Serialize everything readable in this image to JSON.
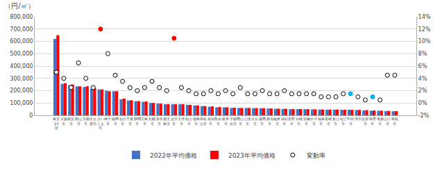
{
  "chart_data": {
    "type": "bar",
    "title": "（円/㎡）",
    "categories": [
      "東京\n23\n区",
      "大阪\n市",
      "横浜\n市",
      "郡山\n市",
      "京都\n市",
      "名古\n屋市",
      "さい\nたま\n市",
      "神戸\n市",
      "福岡\n市",
      "仙台\n市",
      "千葉\n市",
      "静岡\n市",
      "広島\n市",
      "札幌\n市",
      "奈良\n市",
      "鹿児\n島市",
      "金沢\n市",
      "大津\n市",
      "松山\n市",
      "徳島\n市",
      "和歌\n山市",
      "高知\n市",
      "熊本\n市",
      "岐阜\n市",
      "宇都\n宮市",
      "岡山\n市",
      "山形\n市",
      "大分\n市",
      "盛岡\n市",
      "新潟\n市",
      "福井\n市",
      "高松\n市",
      "長野\n市",
      "宮崎\n市",
      "前橋\n市",
      "水戸\n市",
      "福島\n市",
      "長崎\n市",
      "富山\n市",
      "松江\n市",
      "甲府\n市",
      "津市",
      "佐賀\n市",
      "秋田\n市",
      "青森\n市",
      "山口\n市",
      "鳥取\n市"
    ],
    "series": [
      {
        "name": "2022年平均価格",
        "color": "#4472c4",
        "values": [
          620000,
          255000,
          245000,
          235000,
          230000,
          215000,
          210000,
          200000,
          195000,
          130000,
          120000,
          115000,
          110000,
          100000,
          95000,
          90000,
          90000,
          90000,
          85000,
          80000,
          75000,
          70000,
          65000,
          65000,
          60000,
          60000,
          60000,
          58000,
          57000,
          55000,
          53000,
          52000,
          50000,
          50000,
          50000,
          48000,
          47000,
          46000,
          46000,
          45000,
          45000,
          43000,
          40000,
          38000,
          37000,
          35000,
          33000
        ]
      },
      {
        "name": "2023年平均価格",
        "color": "#ff0000",
        "values": [
          650000,
          260000,
          250000,
          235000,
          235000,
          220000,
          210000,
          195000,
          195000,
          135000,
          122000,
          115000,
          112000,
          100000,
          95000,
          90000,
          90000,
          90000,
          85000,
          80000,
          75000,
          72000,
          67000,
          65000,
          62000,
          60000,
          60000,
          59000,
          58000,
          56000,
          54000,
          53000,
          51000,
          51000,
          50000,
          49000,
          47000,
          47000,
          47000,
          46000,
          45000,
          44000,
          42000,
          39000,
          38000,
          36000,
          34000
        ]
      },
      {
        "name": "変動率",
        "type": "scatter",
        "axis": "y2",
        "marker": "circle",
        "color": "#000000",
        "colors": [
          "#ffffff",
          "#ffffff",
          "#ffffff",
          "#ffffff",
          "#ffffff",
          "#ffffff",
          "#ff0000",
          "#ffffff",
          "#ffffff",
          "#ffffff",
          "#ffffff",
          "#ffffff",
          "#ffffff",
          "#ffffff",
          "#ffffff",
          "#ffffff",
          "#ff0000",
          "#ffffff",
          "#ffffff",
          "#ffffff",
          "#ffffff",
          "#ffffff",
          "#ffffff",
          "#ffffff",
          "#ffffff",
          "#ffffff",
          "#ffffff",
          "#ffffff",
          "#ffffff",
          "#ffffff",
          "#ffffff",
          "#ffffff",
          "#ffffff",
          "#ffffff",
          "#ffffff",
          "#ffffff",
          "#ffffff",
          "#ffffff",
          "#ffffff",
          "#ffffff",
          "#00b0f0",
          "#ffffff",
          "#ffffff",
          "#00b0f0",
          "#ffffff",
          "#ffffff",
          "#ffffff"
        ],
        "values": [
          5.0,
          4.0,
          2.5,
          6.5,
          4.0,
          2.5,
          12.0,
          8.0,
          4.5,
          3.5,
          2.5,
          2.0,
          2.5,
          3.5,
          2.5,
          2.0,
          10.5,
          2.5,
          2.0,
          1.5,
          1.5,
          2.0,
          1.5,
          2.0,
          1.5,
          2.5,
          1.5,
          1.5,
          2.0,
          1.5,
          1.5,
          2.0,
          1.5,
          1.5,
          1.5,
          1.5,
          1.0,
          1.0,
          1.0,
          1.5,
          1.5,
          1.0,
          0.5,
          1.0,
          0.5,
          4.5,
          4.5
        ]
      }
    ],
    "ylim": [
      0,
      800000
    ],
    "yticks": [
      0,
      {
        "value": 100000,
        "label": "100,000"
      },
      {
        "value": 200000,
        "label": "200,000"
      },
      {
        "value": 300000,
        "label": "300,000"
      },
      {
        "value": 400000,
        "label": "400,000"
      },
      {
        "value": 500000,
        "label": "500,000"
      },
      {
        "value": 600000,
        "label": "600,000"
      },
      {
        "value": 700000,
        "label": "700,000"
      },
      {
        "value": 800000,
        "label": "800,000"
      }
    ],
    "y2lim": [
      -2,
      14
    ],
    "y2ticks": [
      {
        "value": -2,
        "label": "-2%"
      },
      {
        "value": 0,
        "label": "0%"
      },
      {
        "value": 2,
        "label": "2%"
      },
      {
        "value": 4,
        "label": "4%"
      },
      {
        "value": 6,
        "label": "6%"
      },
      {
        "value": 8,
        "label": "8%"
      },
      {
        "value": 10,
        "label": "10%"
      },
      {
        "value": 12,
        "label": "12%"
      },
      {
        "value": 14,
        "label": "14%"
      }
    ],
    "grid": true,
    "legend": "bottom"
  }
}
